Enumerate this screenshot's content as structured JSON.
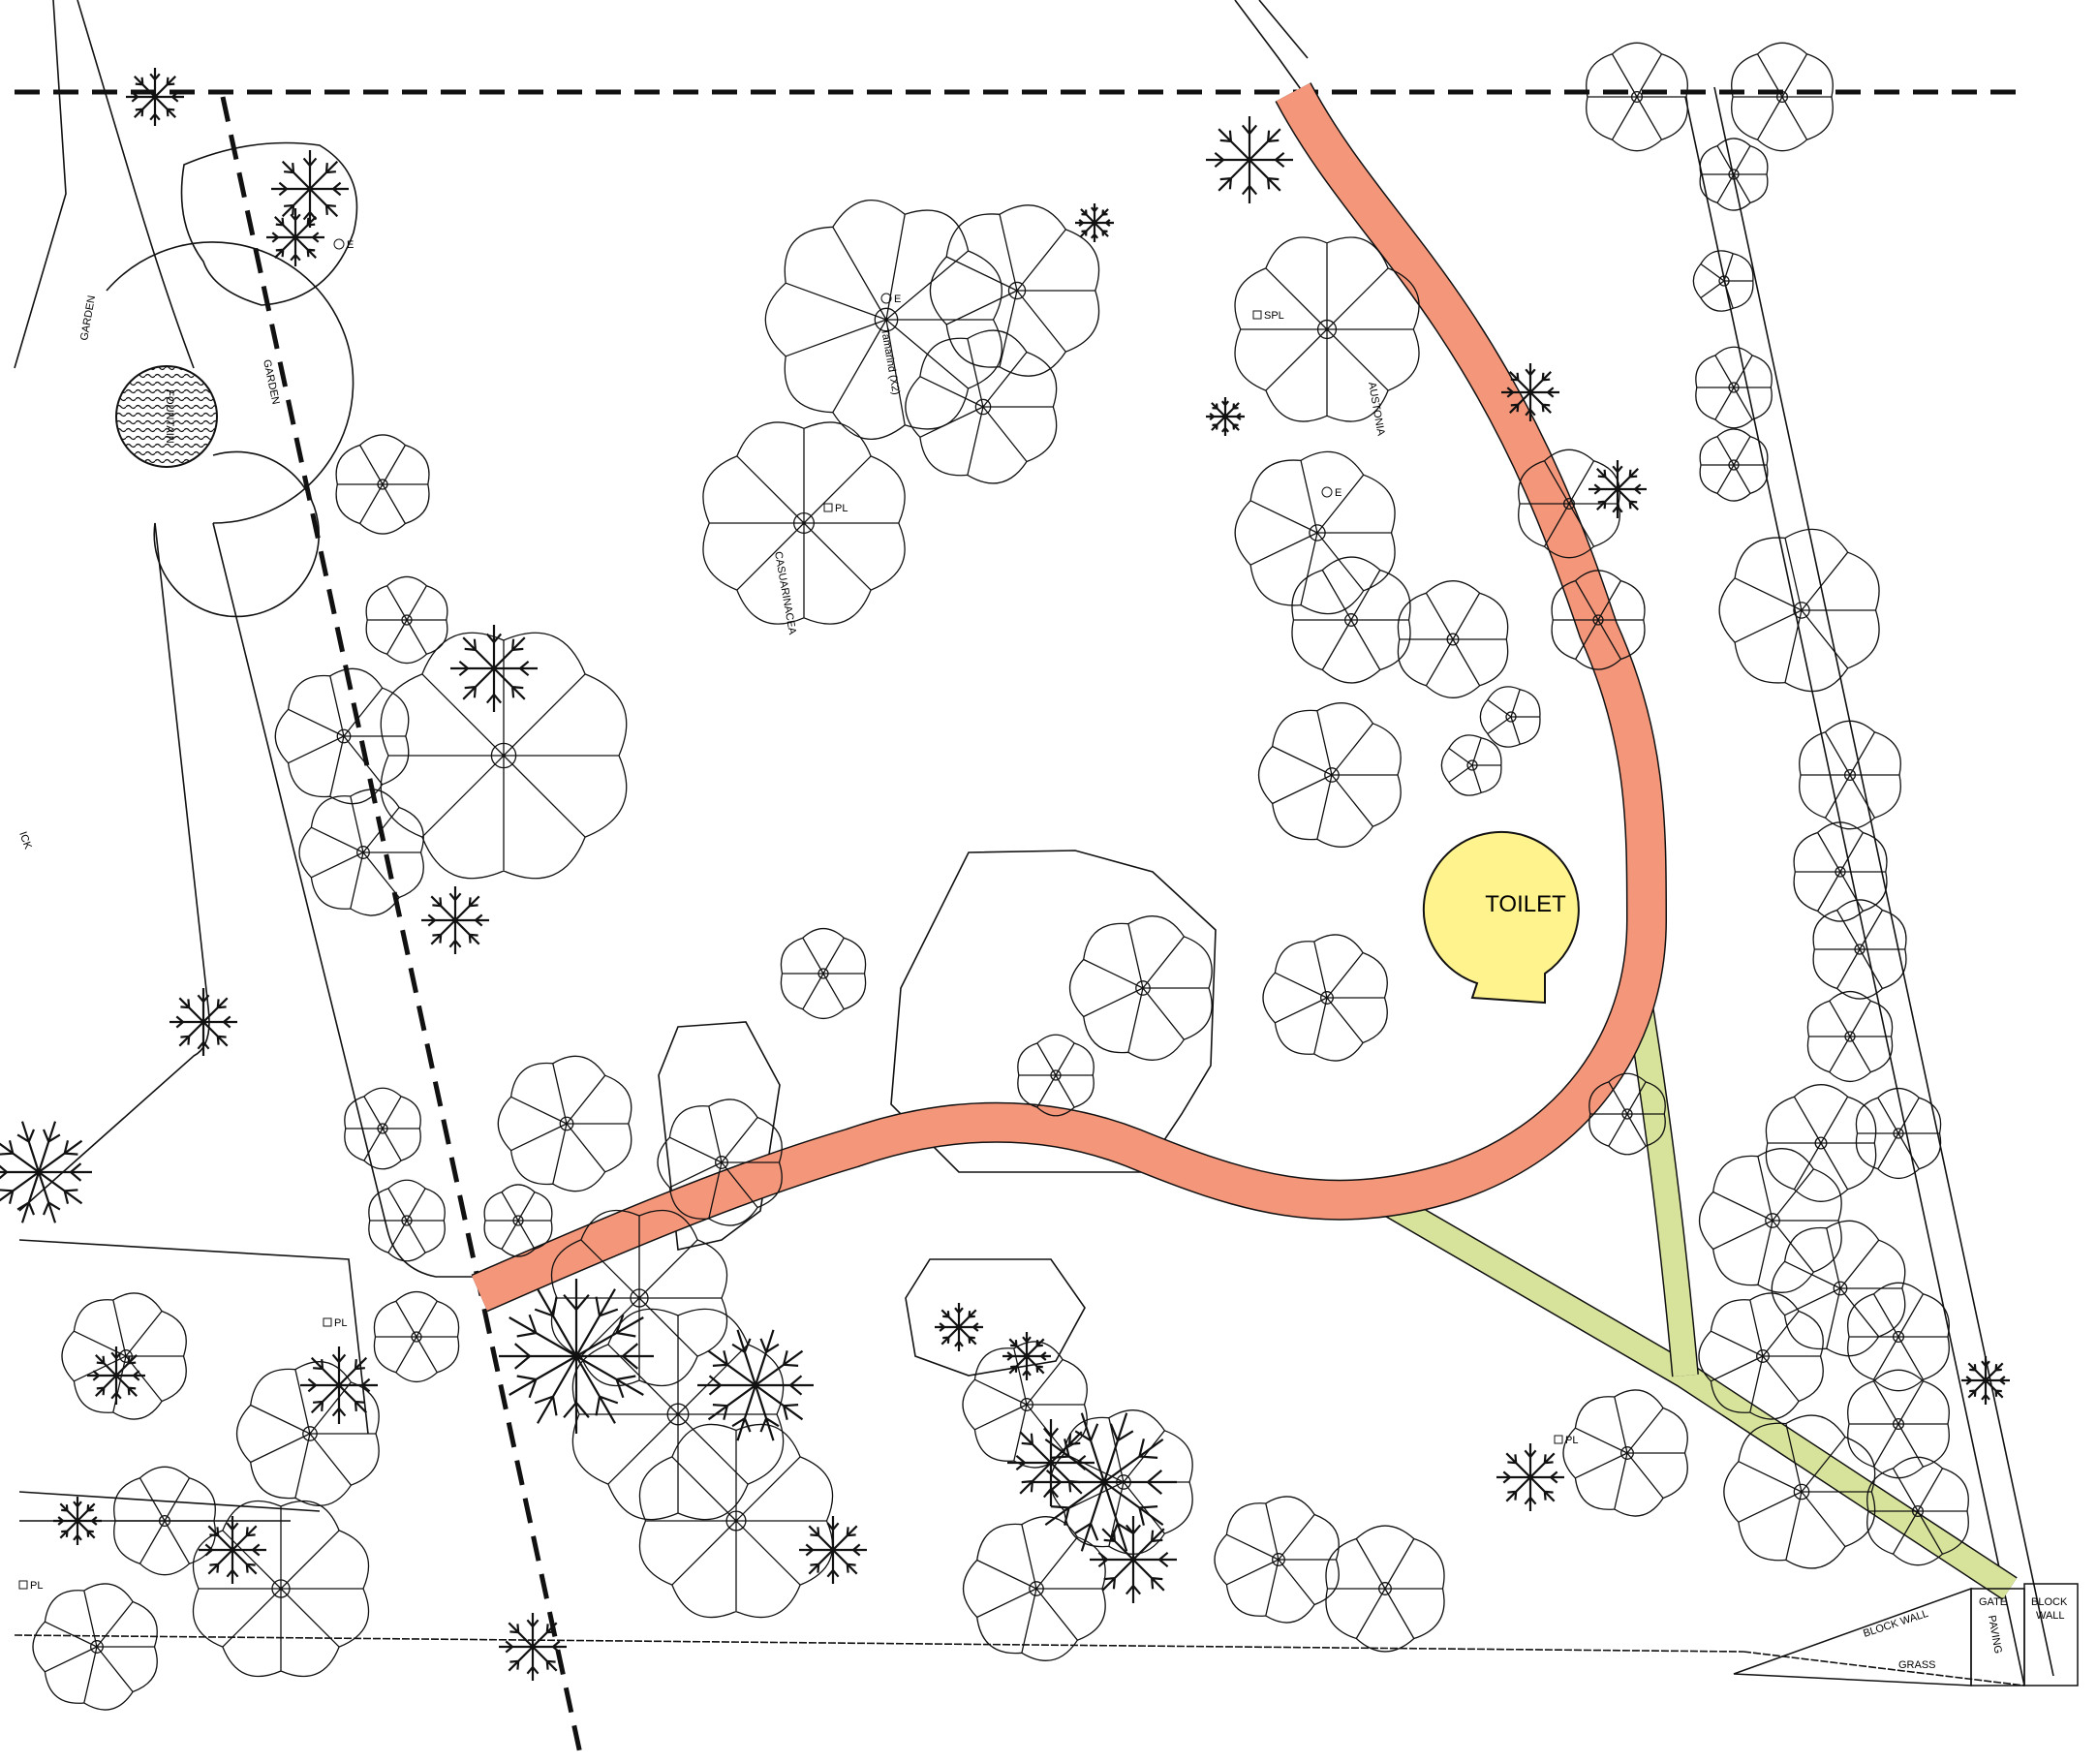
{
  "colors": {
    "main_path": "#f4967a",
    "secondary_path": "#d7e39b",
    "toilet": "#fff38e",
    "line": "#111111",
    "boundary": "#111111",
    "fountain_hatch": "#111111"
  },
  "labels": {
    "toilet": "TOILET",
    "fountain": "FOUNTAIN",
    "garden_1": "GARDEN",
    "garden_2": "GARDEN",
    "gate": "GATE",
    "paving": "PAVING",
    "block_wall_1": "BLOCK",
    "block_wall_2": "WALL",
    "block_wall_bottom": "BLOCK WALL",
    "grass": "GRASS",
    "kerb_edge": "ICK"
  },
  "point_markers": {
    "pl": "PL",
    "e": "E",
    "spl": "SPL"
  },
  "tree_tags": {
    "austonia": "AUSTONIA",
    "casuarina": "CASUARINACEA",
    "tamarind": "Tamarind (X2)"
  },
  "icons": [
    "fountain-icon",
    "tree-canopy-icon",
    "palm-icon",
    "shrub-icon",
    "survey-point-icon",
    "toilet-icon"
  ]
}
